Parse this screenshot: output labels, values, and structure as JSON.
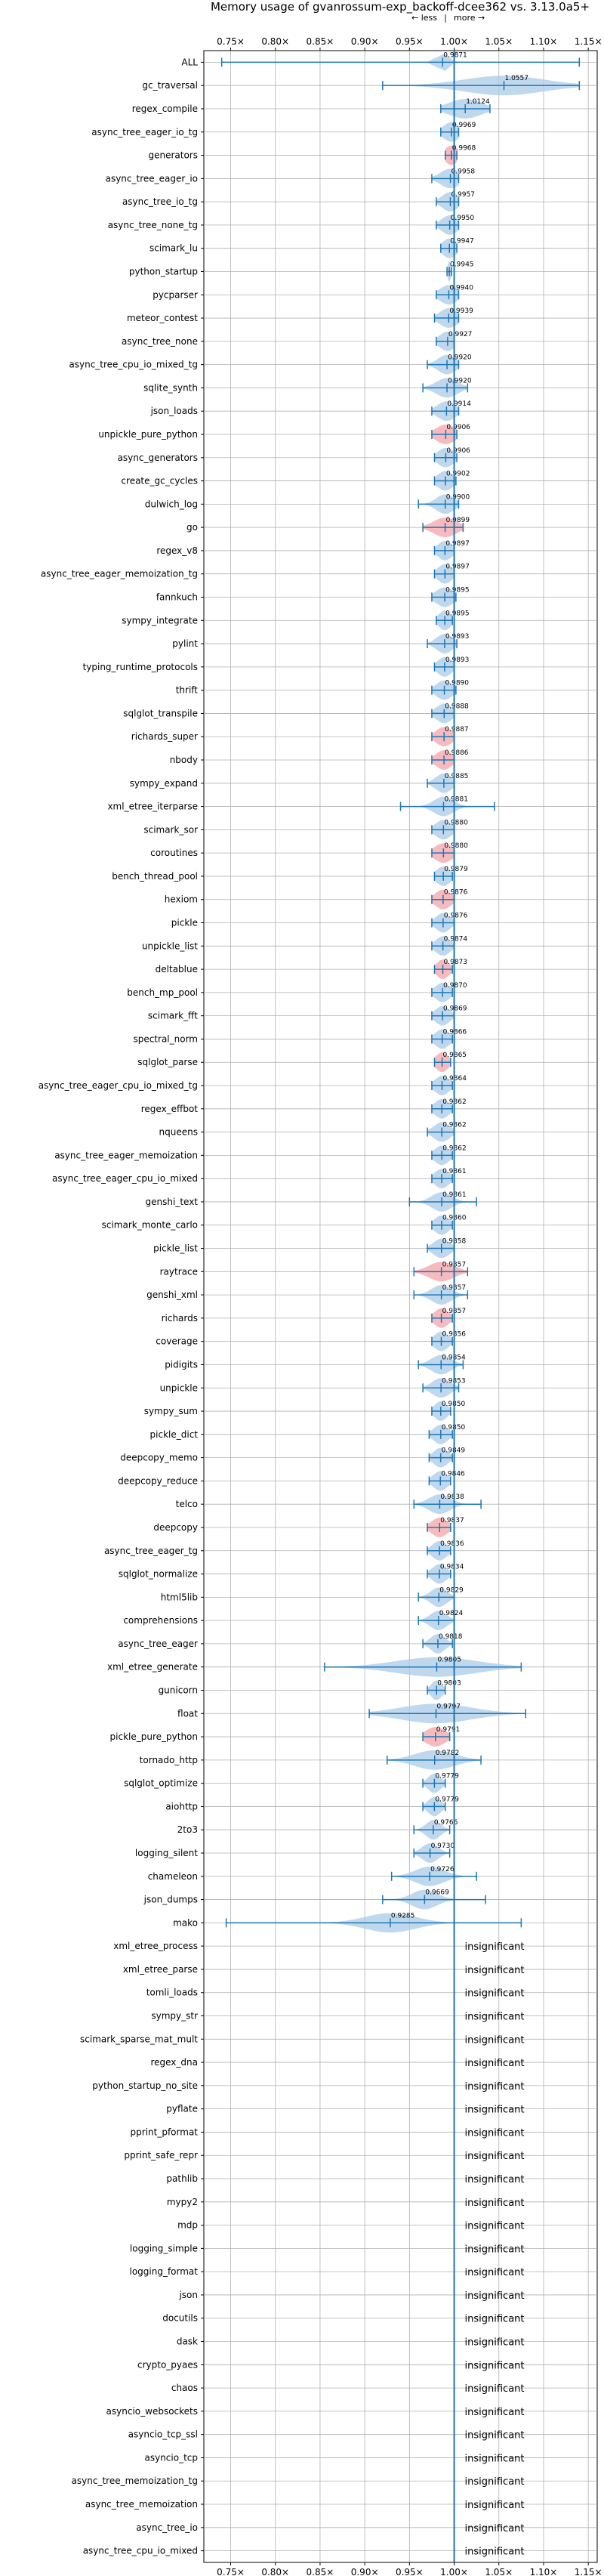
{
  "chart_data": {
    "type": "violin",
    "title": "Memory usage of gvanrossum-exp_backoff-dcee362 vs. 3.13.0a5+",
    "hint": {
      "less": "← less",
      "sep": "|",
      "more": "more →"
    },
    "xlim": [
      0.72,
      1.16
    ],
    "x_ticks": [
      0.75,
      0.8,
      0.85,
      0.9,
      0.95,
      1.0,
      1.05,
      1.1,
      1.15
    ],
    "x_tick_labels": [
      "0.75×",
      "0.80×",
      "0.85×",
      "0.90×",
      "0.95×",
      "1.00×",
      "1.05×",
      "1.10×",
      "1.15×"
    ],
    "reference_line": 1.0,
    "grid": true,
    "colors": {
      "improved": "#f4a3a8",
      "neutral": "#a9cbe8",
      "line": "#1f77b4"
    },
    "insignificant_text": "insignificant",
    "benchmarks": [
      {
        "name": "ALL",
        "median": 0.9871,
        "label": "0.9871",
        "min": 0.74,
        "max": 1.14,
        "spread": 0.006,
        "highlight": false
      },
      {
        "name": "gc_traversal",
        "median": 1.0557,
        "label": "1.0557",
        "min": 0.92,
        "max": 1.14,
        "spread": 0.045,
        "highlight": false
      },
      {
        "name": "regex_compile",
        "median": 1.0124,
        "label": "1.0124",
        "min": 0.985,
        "max": 1.04,
        "spread": 0.018,
        "highlight": false
      },
      {
        "name": "async_tree_eager_io_tg",
        "median": 0.9969,
        "label": "0.9969",
        "min": 0.985,
        "max": 1.005,
        "spread": 0.009,
        "highlight": false
      },
      {
        "name": "generators",
        "median": 0.9968,
        "label": "0.9968",
        "min": 0.99,
        "max": 1.003,
        "spread": 0.007,
        "highlight": true
      },
      {
        "name": "async_tree_eager_io",
        "median": 0.9958,
        "label": "0.9958",
        "min": 0.975,
        "max": 1.005,
        "spread": 0.011,
        "highlight": false
      },
      {
        "name": "async_tree_io_tg",
        "median": 0.9957,
        "label": "0.9957",
        "min": 0.98,
        "max": 1.005,
        "spread": 0.009,
        "highlight": false
      },
      {
        "name": "async_tree_none_tg",
        "median": 0.995,
        "label": "0.9950",
        "min": 0.98,
        "max": 1.005,
        "spread": 0.009,
        "highlight": false
      },
      {
        "name": "scimark_lu",
        "median": 0.9947,
        "label": "0.9947",
        "min": 0.985,
        "max": 1.003,
        "spread": 0.008,
        "highlight": false
      },
      {
        "name": "python_startup",
        "median": 0.9945,
        "label": "0.9945",
        "min": 0.992,
        "max": 0.997,
        "spread": 0.002,
        "highlight": false
      },
      {
        "name": "pycparser",
        "median": 0.994,
        "label": "0.9940",
        "min": 0.98,
        "max": 1.005,
        "spread": 0.01,
        "highlight": false
      },
      {
        "name": "meteor_contest",
        "median": 0.9939,
        "label": "0.9939",
        "min": 0.978,
        "max": 1.005,
        "spread": 0.01,
        "highlight": false
      },
      {
        "name": "async_tree_none",
        "median": 0.9927,
        "label": "0.9927",
        "min": 0.98,
        "max": 1.0,
        "spread": 0.009,
        "highlight": false
      },
      {
        "name": "async_tree_cpu_io_mixed_tg",
        "median": 0.992,
        "label": "0.9920",
        "min": 0.97,
        "max": 1.005,
        "spread": 0.01,
        "highlight": false
      },
      {
        "name": "sqlite_synth",
        "median": 0.992,
        "label": "0.9920",
        "min": 0.965,
        "max": 1.015,
        "spread": 0.012,
        "highlight": false
      },
      {
        "name": "json_loads",
        "median": 0.9914,
        "label": "0.9914",
        "min": 0.975,
        "max": 1.005,
        "spread": 0.01,
        "highlight": false
      },
      {
        "name": "unpickle_pure_python",
        "median": 0.9906,
        "label": "0.9906",
        "min": 0.975,
        "max": 1.003,
        "spread": 0.011,
        "highlight": true
      },
      {
        "name": "async_generators",
        "median": 0.9906,
        "label": "0.9906",
        "min": 0.978,
        "max": 1.003,
        "spread": 0.009,
        "highlight": false
      },
      {
        "name": "create_gc_cycles",
        "median": 0.9902,
        "label": "0.9902",
        "min": 0.978,
        "max": 1.002,
        "spread": 0.009,
        "highlight": false
      },
      {
        "name": "dulwich_log",
        "median": 0.99,
        "label": "0.9900",
        "min": 0.96,
        "max": 1.005,
        "spread": 0.01,
        "highlight": false
      },
      {
        "name": "go",
        "median": 0.9899,
        "label": "0.9899",
        "min": 0.965,
        "max": 1.01,
        "spread": 0.013,
        "highlight": true
      },
      {
        "name": "regex_v8",
        "median": 0.9897,
        "label": "0.9897",
        "min": 0.978,
        "max": 1.0,
        "spread": 0.008,
        "highlight": false
      },
      {
        "name": "async_tree_eager_memoization_tg",
        "median": 0.9897,
        "label": "0.9897",
        "min": 0.978,
        "max": 1.0,
        "spread": 0.008,
        "highlight": false
      },
      {
        "name": "fannkuch",
        "median": 0.9895,
        "label": "0.9895",
        "min": 0.975,
        "max": 1.002,
        "spread": 0.01,
        "highlight": false
      },
      {
        "name": "sympy_integrate",
        "median": 0.9895,
        "label": "0.9895",
        "min": 0.98,
        "max": 0.998,
        "spread": 0.007,
        "highlight": false
      },
      {
        "name": "pylint",
        "median": 0.9893,
        "label": "0.9893",
        "min": 0.97,
        "max": 1.003,
        "spread": 0.009,
        "highlight": false
      },
      {
        "name": "typing_runtime_protocols",
        "median": 0.9893,
        "label": "0.9893",
        "min": 0.978,
        "max": 1.0,
        "spread": 0.008,
        "highlight": false
      },
      {
        "name": "thrift",
        "median": 0.989,
        "label": "0.9890",
        "min": 0.975,
        "max": 1.002,
        "spread": 0.009,
        "highlight": false
      },
      {
        "name": "sqlglot_transpile",
        "median": 0.9888,
        "label": "0.9888",
        "min": 0.975,
        "max": 1.0,
        "spread": 0.009,
        "highlight": false
      },
      {
        "name": "richards_super",
        "median": 0.9887,
        "label": "0.9887",
        "min": 0.975,
        "max": 1.0,
        "spread": 0.009,
        "highlight": true
      },
      {
        "name": "nbody",
        "median": 0.9886,
        "label": "0.9886",
        "min": 0.975,
        "max": 1.0,
        "spread": 0.009,
        "highlight": true
      },
      {
        "name": "sympy_expand",
        "median": 0.9885,
        "label": "0.9885",
        "min": 0.97,
        "max": 1.0,
        "spread": 0.009,
        "highlight": false
      },
      {
        "name": "xml_etree_iterparse",
        "median": 0.9881,
        "label": "0.9881",
        "min": 0.94,
        "max": 1.045,
        "spread": 0.011,
        "highlight": false
      },
      {
        "name": "scimark_sor",
        "median": 0.988,
        "label": "0.9880",
        "min": 0.975,
        "max": 1.0,
        "spread": 0.009,
        "highlight": false
      },
      {
        "name": "coroutines",
        "median": 0.988,
        "label": "0.9880",
        "min": 0.975,
        "max": 1.0,
        "spread": 0.01,
        "highlight": true
      },
      {
        "name": "bench_thread_pool",
        "median": 0.9879,
        "label": "0.9879",
        "min": 0.978,
        "max": 0.998,
        "spread": 0.008,
        "highlight": false
      },
      {
        "name": "hexiom",
        "median": 0.9876,
        "label": "0.9876",
        "min": 0.975,
        "max": 1.0,
        "spread": 0.009,
        "highlight": true
      },
      {
        "name": "pickle",
        "median": 0.9876,
        "label": "0.9876",
        "min": 0.975,
        "max": 1.0,
        "spread": 0.008,
        "highlight": false
      },
      {
        "name": "unpickle_list",
        "median": 0.9874,
        "label": "0.9874",
        "min": 0.975,
        "max": 1.0,
        "spread": 0.008,
        "highlight": false
      },
      {
        "name": "deltablue",
        "median": 0.9873,
        "label": "0.9873",
        "min": 0.978,
        "max": 0.998,
        "spread": 0.007,
        "highlight": true
      },
      {
        "name": "bench_mp_pool",
        "median": 0.987,
        "label": "0.9870",
        "min": 0.975,
        "max": 0.998,
        "spread": 0.008,
        "highlight": false
      },
      {
        "name": "scimark_fft",
        "median": 0.9869,
        "label": "0.9869",
        "min": 0.975,
        "max": 1.0,
        "spread": 0.008,
        "highlight": false
      },
      {
        "name": "spectral_norm",
        "median": 0.9866,
        "label": "0.9866",
        "min": 0.975,
        "max": 0.998,
        "spread": 0.008,
        "highlight": false
      },
      {
        "name": "sqlglot_parse",
        "median": 0.9865,
        "label": "0.9865",
        "min": 0.978,
        "max": 0.996,
        "spread": 0.007,
        "highlight": true
      },
      {
        "name": "async_tree_eager_cpu_io_mixed_tg",
        "median": 0.9864,
        "label": "0.9864",
        "min": 0.975,
        "max": 0.998,
        "spread": 0.008,
        "highlight": false
      },
      {
        "name": "regex_effbot",
        "median": 0.9862,
        "label": "0.9862",
        "min": 0.975,
        "max": 0.998,
        "spread": 0.008,
        "highlight": false
      },
      {
        "name": "nqueens",
        "median": 0.9862,
        "label": "0.9862",
        "min": 0.97,
        "max": 1.0,
        "spread": 0.009,
        "highlight": false
      },
      {
        "name": "async_tree_eager_memoization",
        "median": 0.9862,
        "label": "0.9862",
        "min": 0.975,
        "max": 0.998,
        "spread": 0.008,
        "highlight": false
      },
      {
        "name": "async_tree_eager_cpu_io_mixed",
        "median": 0.9861,
        "label": "0.9861",
        "min": 0.975,
        "max": 0.998,
        "spread": 0.008,
        "highlight": false
      },
      {
        "name": "genshi_text",
        "median": 0.9861,
        "label": "0.9861",
        "min": 0.95,
        "max": 1.025,
        "spread": 0.011,
        "highlight": false
      },
      {
        "name": "scimark_monte_carlo",
        "median": 0.986,
        "label": "0.9860",
        "min": 0.975,
        "max": 0.998,
        "spread": 0.008,
        "highlight": false
      },
      {
        "name": "pickle_list",
        "median": 0.9858,
        "label": "0.9858",
        "min": 0.97,
        "max": 1.0,
        "spread": 0.009,
        "highlight": false
      },
      {
        "name": "raytrace",
        "median": 0.9857,
        "label": "0.9857",
        "min": 0.955,
        "max": 1.015,
        "spread": 0.014,
        "highlight": true
      },
      {
        "name": "genshi_xml",
        "median": 0.9857,
        "label": "0.9857",
        "min": 0.955,
        "max": 1.015,
        "spread": 0.011,
        "highlight": false
      },
      {
        "name": "richards",
        "median": 0.9857,
        "label": "0.9857",
        "min": 0.975,
        "max": 0.998,
        "spread": 0.008,
        "highlight": true
      },
      {
        "name": "coverage",
        "median": 0.9856,
        "label": "0.9856",
        "min": 0.975,
        "max": 0.998,
        "spread": 0.008,
        "highlight": false
      },
      {
        "name": "pidigits",
        "median": 0.9854,
        "label": "0.9854",
        "min": 0.96,
        "max": 1.01,
        "spread": 0.011,
        "highlight": false
      },
      {
        "name": "unpickle",
        "median": 0.9853,
        "label": "0.9853",
        "min": 0.965,
        "max": 1.005,
        "spread": 0.01,
        "highlight": false
      },
      {
        "name": "sympy_sum",
        "median": 0.985,
        "label": "0.9850",
        "min": 0.975,
        "max": 0.996,
        "spread": 0.007,
        "highlight": false
      },
      {
        "name": "pickle_dict",
        "median": 0.985,
        "label": "0.9850",
        "min": 0.972,
        "max": 0.998,
        "spread": 0.008,
        "highlight": false
      },
      {
        "name": "deepcopy_memo",
        "median": 0.9849,
        "label": "0.9849",
        "min": 0.972,
        "max": 0.998,
        "spread": 0.008,
        "highlight": false
      },
      {
        "name": "deepcopy_reduce",
        "median": 0.9846,
        "label": "0.9846",
        "min": 0.972,
        "max": 0.996,
        "spread": 0.008,
        "highlight": false
      },
      {
        "name": "telco",
        "median": 0.9838,
        "label": "0.9838",
        "min": 0.955,
        "max": 1.03,
        "spread": 0.012,
        "highlight": false
      },
      {
        "name": "deepcopy",
        "median": 0.9837,
        "label": "0.9837",
        "min": 0.97,
        "max": 0.996,
        "spread": 0.009,
        "highlight": true
      },
      {
        "name": "async_tree_eager_tg",
        "median": 0.9836,
        "label": "0.9836",
        "min": 0.97,
        "max": 0.996,
        "spread": 0.008,
        "highlight": false
      },
      {
        "name": "sqlglot_normalize",
        "median": 0.9834,
        "label": "0.9834",
        "min": 0.97,
        "max": 0.996,
        "spread": 0.008,
        "highlight": false
      },
      {
        "name": "html5lib",
        "median": 0.9829,
        "label": "0.9829",
        "min": 0.96,
        "max": 1.0,
        "spread": 0.009,
        "highlight": false
      },
      {
        "name": "comprehensions",
        "median": 0.9824,
        "label": "0.9824",
        "min": 0.96,
        "max": 1.0,
        "spread": 0.009,
        "highlight": false
      },
      {
        "name": "async_tree_eager",
        "median": 0.9818,
        "label": "0.9818",
        "min": 0.965,
        "max": 0.998,
        "spread": 0.008,
        "highlight": false
      },
      {
        "name": "xml_etree_generate",
        "median": 0.9805,
        "label": "0.9805",
        "min": 0.855,
        "max": 1.075,
        "spread": 0.045,
        "highlight": false
      },
      {
        "name": "gunicorn",
        "median": 0.9803,
        "label": "0.9803",
        "min": 0.97,
        "max": 0.99,
        "spread": 0.006,
        "highlight": false
      },
      {
        "name": "float",
        "median": 0.9797,
        "label": "0.9797",
        "min": 0.905,
        "max": 1.08,
        "spread": 0.04,
        "highlight": false
      },
      {
        "name": "pickle_pure_python",
        "median": 0.9791,
        "label": "0.9791",
        "min": 0.965,
        "max": 0.995,
        "spread": 0.011,
        "highlight": true
      },
      {
        "name": "tornado_http",
        "median": 0.9782,
        "label": "0.9782",
        "min": 0.925,
        "max": 1.03,
        "spread": 0.022,
        "highlight": false
      },
      {
        "name": "sqlglot_optimize",
        "median": 0.9779,
        "label": "0.9779",
        "min": 0.965,
        "max": 0.99,
        "spread": 0.007,
        "highlight": false
      },
      {
        "name": "aiohttp",
        "median": 0.9779,
        "label": "0.9779",
        "min": 0.965,
        "max": 0.99,
        "spread": 0.007,
        "highlight": false
      },
      {
        "name": "2to3",
        "median": 0.9766,
        "label": "0.9766",
        "min": 0.955,
        "max": 0.995,
        "spread": 0.008,
        "highlight": false
      },
      {
        "name": "logging_silent",
        "median": 0.973,
        "label": "0.9730",
        "min": 0.955,
        "max": 0.995,
        "spread": 0.009,
        "highlight": false
      },
      {
        "name": "chameleon",
        "median": 0.9726,
        "label": "0.9726",
        "min": 0.93,
        "max": 1.025,
        "spread": 0.016,
        "highlight": false
      },
      {
        "name": "json_dumps",
        "median": 0.9669,
        "label": "0.9669",
        "min": 0.92,
        "max": 1.035,
        "spread": 0.014,
        "highlight": false
      },
      {
        "name": "mako",
        "median": 0.9285,
        "label": "0.9285",
        "min": 0.745,
        "max": 1.075,
        "spread": 0.028,
        "highlight": false
      },
      {
        "name": "xml_etree_process",
        "insignificant": true
      },
      {
        "name": "xml_etree_parse",
        "insignificant": true
      },
      {
        "name": "tomli_loads",
        "insignificant": true
      },
      {
        "name": "sympy_str",
        "insignificant": true
      },
      {
        "name": "scimark_sparse_mat_mult",
        "insignificant": true
      },
      {
        "name": "regex_dna",
        "insignificant": true
      },
      {
        "name": "python_startup_no_site",
        "insignificant": true
      },
      {
        "name": "pyflate",
        "insignificant": true
      },
      {
        "name": "pprint_pformat",
        "insignificant": true
      },
      {
        "name": "pprint_safe_repr",
        "insignificant": true
      },
      {
        "name": "pathlib",
        "insignificant": true
      },
      {
        "name": "mypy2",
        "insignificant": true
      },
      {
        "name": "mdp",
        "insignificant": true
      },
      {
        "name": "logging_simple",
        "insignificant": true
      },
      {
        "name": "logging_format",
        "insignificant": true
      },
      {
        "name": "json",
        "insignificant": true
      },
      {
        "name": "docutils",
        "insignificant": true
      },
      {
        "name": "dask",
        "insignificant": true
      },
      {
        "name": "crypto_pyaes",
        "insignificant": true
      },
      {
        "name": "chaos",
        "insignificant": true
      },
      {
        "name": "asyncio_websockets",
        "insignificant": true
      },
      {
        "name": "asyncio_tcp_ssl",
        "insignificant": true
      },
      {
        "name": "asyncio_tcp",
        "insignificant": true
      },
      {
        "name": "async_tree_memoization_tg",
        "insignificant": true
      },
      {
        "name": "async_tree_memoization",
        "insignificant": true
      },
      {
        "name": "async_tree_io",
        "insignificant": true
      },
      {
        "name": "async_tree_cpu_io_mixed",
        "insignificant": true
      }
    ]
  }
}
